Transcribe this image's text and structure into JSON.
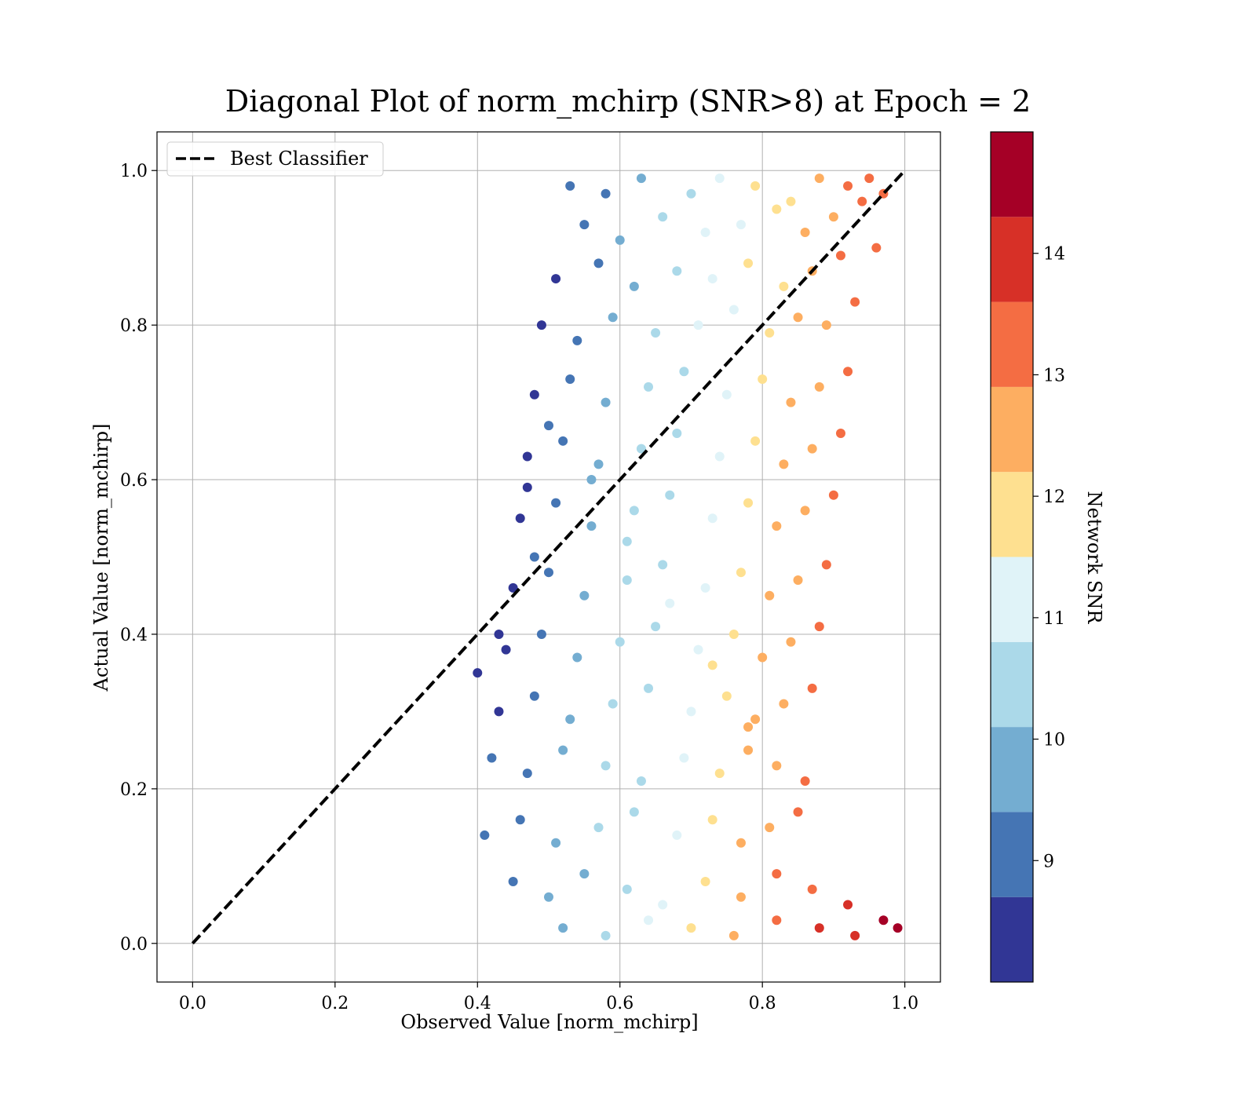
{
  "chart_data": {
    "type": "scatter",
    "title": "Diagonal Plot of norm_mchirp (SNR>8) at Epoch = 2",
    "xlabel": "Observed Value [norm_mchirp]",
    "ylabel": "Actual Value [norm_mchirp]",
    "xlim": [
      -0.05,
      1.05
    ],
    "ylim": [
      -0.05,
      1.05
    ],
    "xticks": [
      0.0,
      0.2,
      0.4,
      0.6,
      0.8,
      1.0
    ],
    "yticks": [
      0.0,
      0.2,
      0.4,
      0.6,
      0.8,
      1.0
    ],
    "xtick_labels": [
      "0.0",
      "0.2",
      "0.4",
      "0.6",
      "0.8",
      "1.0"
    ],
    "ytick_labels": [
      "0.0",
      "0.2",
      "0.4",
      "0.6",
      "0.8",
      "1.0"
    ],
    "grid": true,
    "legend": {
      "placement": "top-left",
      "entries": [
        {
          "label": "Best Classifier",
          "style": "dashed",
          "color": "#000000"
        }
      ]
    },
    "reference_line": {
      "name": "Best Classifier",
      "x": [
        0.0,
        1.0
      ],
      "y": [
        0.0,
        1.0
      ],
      "style": "dashed"
    },
    "colorbar": {
      "label": "Network SNR",
      "range": [
        8.0,
        15.0
      ],
      "ticks": [
        9,
        10,
        11,
        12,
        13,
        14
      ],
      "tick_labels": [
        "9",
        "10",
        "11",
        "12",
        "13",
        "14"
      ],
      "bins": [
        {
          "from": 8.0,
          "to": 8.7,
          "color": "#313695"
        },
        {
          "from": 8.7,
          "to": 9.4,
          "color": "#4575b4"
        },
        {
          "from": 9.4,
          "to": 10.1,
          "color": "#74add1"
        },
        {
          "from": 10.1,
          "to": 10.8,
          "color": "#abd9e9"
        },
        {
          "from": 10.8,
          "to": 11.5,
          "color": "#e0f3f8"
        },
        {
          "from": 11.5,
          "to": 12.2,
          "color": "#fee090"
        },
        {
          "from": 12.2,
          "to": 12.9,
          "color": "#fdae61"
        },
        {
          "from": 12.9,
          "to": 13.6,
          "color": "#f46d43"
        },
        {
          "from": 13.6,
          "to": 14.3,
          "color": "#d73027"
        },
        {
          "from": 14.3,
          "to": 15.0,
          "color": "#a50026"
        }
      ]
    },
    "series": [
      {
        "values": [
          [
            0.53,
            0.98
          ],
          [
            0.58,
            0.97
          ],
          [
            0.63,
            0.99
          ],
          [
            0.7,
            0.97
          ],
          [
            0.74,
            0.99
          ],
          [
            0.79,
            0.98
          ],
          [
            0.84,
            0.96
          ],
          [
            0.88,
            0.99
          ],
          [
            0.92,
            0.98
          ],
          [
            0.95,
            0.99
          ],
          [
            0.55,
            0.93
          ],
          [
            0.6,
            0.91
          ],
          [
            0.66,
            0.94
          ],
          [
            0.72,
            0.92
          ],
          [
            0.77,
            0.93
          ],
          [
            0.82,
            0.95
          ],
          [
            0.86,
            0.92
          ],
          [
            0.9,
            0.94
          ],
          [
            0.94,
            0.96
          ],
          [
            0.97,
            0.97
          ],
          [
            0.51,
            0.86
          ],
          [
            0.57,
            0.88
          ],
          [
            0.62,
            0.85
          ],
          [
            0.68,
            0.87
          ],
          [
            0.73,
            0.86
          ],
          [
            0.78,
            0.88
          ],
          [
            0.83,
            0.85
          ],
          [
            0.87,
            0.87
          ],
          [
            0.91,
            0.89
          ],
          [
            0.96,
            0.9
          ],
          [
            0.49,
            0.8
          ],
          [
            0.54,
            0.78
          ],
          [
            0.59,
            0.81
          ],
          [
            0.65,
            0.79
          ],
          [
            0.71,
            0.8
          ],
          [
            0.76,
            0.82
          ],
          [
            0.81,
            0.79
          ],
          [
            0.85,
            0.81
          ],
          [
            0.89,
            0.8
          ],
          [
            0.93,
            0.83
          ],
          [
            0.48,
            0.71
          ],
          [
            0.53,
            0.73
          ],
          [
            0.58,
            0.7
          ],
          [
            0.64,
            0.72
          ],
          [
            0.69,
            0.74
          ],
          [
            0.75,
            0.71
          ],
          [
            0.8,
            0.73
          ],
          [
            0.84,
            0.7
          ],
          [
            0.88,
            0.72
          ],
          [
            0.92,
            0.74
          ],
          [
            0.47,
            0.63
          ],
          [
            0.52,
            0.65
          ],
          [
            0.57,
            0.62
          ],
          [
            0.63,
            0.64
          ],
          [
            0.68,
            0.66
          ],
          [
            0.74,
            0.63
          ],
          [
            0.79,
            0.65
          ],
          [
            0.83,
            0.62
          ],
          [
            0.87,
            0.64
          ],
          [
            0.91,
            0.66
          ],
          [
            0.46,
            0.55
          ],
          [
            0.51,
            0.57
          ],
          [
            0.56,
            0.54
          ],
          [
            0.62,
            0.56
          ],
          [
            0.67,
            0.58
          ],
          [
            0.73,
            0.55
          ],
          [
            0.78,
            0.57
          ],
          [
            0.82,
            0.54
          ],
          [
            0.86,
            0.56
          ],
          [
            0.9,
            0.58
          ],
          [
            0.45,
            0.46
          ],
          [
            0.5,
            0.48
          ],
          [
            0.55,
            0.45
          ],
          [
            0.61,
            0.47
          ],
          [
            0.66,
            0.49
          ],
          [
            0.72,
            0.46
          ],
          [
            0.77,
            0.48
          ],
          [
            0.81,
            0.45
          ],
          [
            0.85,
            0.47
          ],
          [
            0.89,
            0.49
          ],
          [
            0.44,
            0.38
          ],
          [
            0.49,
            0.4
          ],
          [
            0.54,
            0.37
          ],
          [
            0.6,
            0.39
          ],
          [
            0.65,
            0.41
          ],
          [
            0.71,
            0.38
          ],
          [
            0.76,
            0.4
          ],
          [
            0.8,
            0.37
          ],
          [
            0.84,
            0.39
          ],
          [
            0.88,
            0.41
          ],
          [
            0.43,
            0.3
          ],
          [
            0.48,
            0.32
          ],
          [
            0.53,
            0.29
          ],
          [
            0.59,
            0.31
          ],
          [
            0.64,
            0.33
          ],
          [
            0.7,
            0.3
          ],
          [
            0.75,
            0.32
          ],
          [
            0.79,
            0.29
          ],
          [
            0.83,
            0.31
          ],
          [
            0.87,
            0.33
          ],
          [
            0.42,
            0.24
          ],
          [
            0.47,
            0.22
          ],
          [
            0.52,
            0.25
          ],
          [
            0.58,
            0.23
          ],
          [
            0.63,
            0.21
          ],
          [
            0.69,
            0.24
          ],
          [
            0.74,
            0.22
          ],
          [
            0.78,
            0.25
          ],
          [
            0.82,
            0.23
          ],
          [
            0.86,
            0.21
          ],
          [
            0.41,
            0.14
          ],
          [
            0.46,
            0.16
          ],
          [
            0.51,
            0.13
          ],
          [
            0.57,
            0.15
          ],
          [
            0.62,
            0.17
          ],
          [
            0.68,
            0.14
          ],
          [
            0.73,
            0.16
          ],
          [
            0.77,
            0.13
          ],
          [
            0.81,
            0.15
          ],
          [
            0.85,
            0.17
          ],
          [
            0.45,
            0.08
          ],
          [
            0.5,
            0.06
          ],
          [
            0.55,
            0.09
          ],
          [
            0.61,
            0.07
          ],
          [
            0.66,
            0.05
          ],
          [
            0.72,
            0.08
          ],
          [
            0.77,
            0.06
          ],
          [
            0.82,
            0.09
          ],
          [
            0.87,
            0.07
          ],
          [
            0.92,
            0.05
          ],
          [
            0.52,
            0.02
          ],
          [
            0.58,
            0.01
          ],
          [
            0.64,
            0.03
          ],
          [
            0.7,
            0.02
          ],
          [
            0.76,
            0.01
          ],
          [
            0.82,
            0.03
          ],
          [
            0.88,
            0.02
          ],
          [
            0.93,
            0.01
          ],
          [
            0.97,
            0.03
          ],
          [
            0.99,
            0.02
          ],
          [
            0.4,
            0.35
          ],
          [
            0.43,
            0.4
          ],
          [
            0.47,
            0.59
          ],
          [
            0.48,
            0.5
          ],
          [
            0.5,
            0.67
          ],
          [
            0.56,
            0.6
          ],
          [
            0.61,
            0.52
          ],
          [
            0.67,
            0.44
          ],
          [
            0.73,
            0.36
          ],
          [
            0.78,
            0.28
          ]
        ]
      }
    ]
  }
}
